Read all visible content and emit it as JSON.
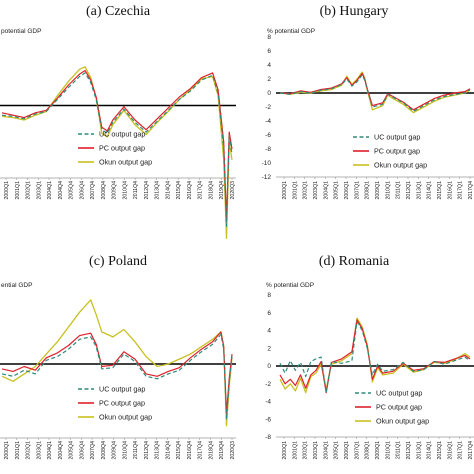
{
  "colors": {
    "uc": "#2e8b7a",
    "pc": "#e0202a",
    "okun": "#c8c020",
    "zero": "#000000",
    "axis": "#9a9a9a"
  },
  "legend_labels": [
    "UC output gap",
    "PC output gap",
    "Okun output gap"
  ],
  "chart_data": [
    {
      "type": "line",
      "title": "(a) Czechia",
      "ylabel": "potential GDP",
      "ylim": [
        -6,
        6
      ],
      "yticks": [],
      "xticks": [
        "2000Q1",
        "2001Q1",
        "2002Q1",
        "2003Q1",
        "2004Q1",
        "2004Q4",
        "2005Q4",
        "2006Q4",
        "2007Q4",
        "2008Q4",
        "2009Q4",
        "2010Q4",
        "2011Q4",
        "2012Q4",
        "2013Q4",
        "2014Q4",
        "2015Q4",
        "2016Q4",
        "2017Q4",
        "2018Q4",
        "2019Q4",
        "2020Q3"
      ],
      "show_legend": true,
      "series": [
        {
          "name": "UC output gap",
          "x": [
            2000,
            2001,
            2002,
            2003,
            2004,
            2005,
            2006,
            2007,
            2007.5,
            2008,
            2008.5,
            2009,
            2009.5,
            2010,
            2011,
            2012,
            2013,
            2014,
            2015,
            2016,
            2017,
            2018,
            2019,
            2019.5,
            2020,
            2020.25,
            2020.5,
            2020.75
          ],
          "y": [
            -0.8,
            -0.9,
            -1.1,
            -0.7,
            -0.5,
            0.5,
            1.5,
            2.4,
            2.7,
            1.9,
            0.5,
            -2.0,
            -2.3,
            -1.4,
            -0.3,
            -1.4,
            -2.2,
            -1.3,
            -0.4,
            0.5,
            1.2,
            2.1,
            2.5,
            1.0,
            -3.5,
            -10.0,
            -2.5,
            -4.0
          ]
        },
        {
          "name": "PC output gap",
          "x": [
            2000,
            2001,
            2002,
            2003,
            2004,
            2005,
            2006,
            2007,
            2007.5,
            2008,
            2008.5,
            2009,
            2009.5,
            2010,
            2011,
            2012,
            2013,
            2014,
            2015,
            2016,
            2017,
            2018,
            2019,
            2019.5,
            2020,
            2020.25,
            2020.5,
            2020.75
          ],
          "y": [
            -0.6,
            -0.8,
            -1.0,
            -0.6,
            -0.4,
            0.6,
            1.7,
            2.6,
            2.9,
            2.1,
            0.7,
            -1.8,
            -2.1,
            -1.2,
            -0.1,
            -1.2,
            -2.0,
            -1.1,
            -0.2,
            0.7,
            1.4,
            2.3,
            2.7,
            1.3,
            -3.0,
            -9.5,
            -2.2,
            -3.6
          ]
        },
        {
          "name": "Okun output gap",
          "x": [
            2000,
            2001,
            2002,
            2003,
            2004,
            2005,
            2006,
            2007,
            2007.5,
            2008,
            2008.5,
            2009,
            2009.5,
            2010,
            2011,
            2012,
            2013,
            2014,
            2015,
            2016,
            2017,
            2018,
            2019,
            2019.5,
            2020,
            2020.25,
            2020.5,
            2020.75
          ],
          "y": [
            -0.9,
            -1.0,
            -1.2,
            -0.8,
            -0.5,
            0.8,
            2.0,
            3.0,
            3.2,
            2.3,
            0.6,
            -2.3,
            -2.6,
            -1.6,
            -0.4,
            -1.6,
            -2.4,
            -1.4,
            -0.5,
            0.5,
            1.3,
            2.2,
            2.4,
            0.8,
            -4.5,
            -11.0,
            -3.0,
            -4.5
          ]
        }
      ]
    },
    {
      "type": "line",
      "title": "(b) Hungary",
      "ylabel": "% potential GDP",
      "ylim": [
        -12,
        8
      ],
      "yticks": [
        8,
        6,
        4,
        2,
        0,
        -2,
        -4,
        -6,
        -8,
        -10,
        -12
      ],
      "xticks": [
        "2000Q1",
        "2001Q1",
        "2002Q1",
        "2003Q1",
        "2004Q1",
        "2005Q1",
        "2006Q1",
        "2007Q1",
        "2008Q1",
        "2009Q1",
        "2010Q1",
        "2011Q1",
        "2012Q1",
        "2013Q1",
        "2014Q1",
        "2015Q1",
        "2016Q1",
        "2017Q1",
        "2017Q4"
      ],
      "show_legend": true,
      "series": [
        {
          "name": "UC output gap",
          "x": [
            2000,
            2001,
            2002,
            2003,
            2004,
            2005,
            2006,
            2006.5,
            2007,
            2007.5,
            2008,
            2008.25,
            2008.5,
            2009,
            2010,
            2010.5,
            2011,
            2012,
            2013,
            2014,
            2015,
            2016,
            2017,
            2018,
            2018.5
          ],
          "y": [
            0,
            -0.2,
            0.2,
            0,
            0.4,
            0.6,
            1.2,
            2.0,
            1.0,
            1.6,
            2.6,
            1.8,
            0.5,
            -2.0,
            -1.6,
            -0.2,
            -0.6,
            -1.4,
            -2.6,
            -1.8,
            -1.0,
            -0.5,
            -0.2,
            0,
            0.5
          ]
        },
        {
          "name": "PC output gap",
          "x": [
            2000,
            2001,
            2002,
            2003,
            2004,
            2005,
            2006,
            2006.5,
            2007,
            2007.5,
            2008,
            2008.25,
            2008.5,
            2009,
            2010,
            2010.5,
            2011,
            2012,
            2013,
            2014,
            2015,
            2016,
            2017,
            2018,
            2018.5
          ],
          "y": [
            0,
            -0.1,
            0.3,
            0.1,
            0.5,
            0.7,
            1.3,
            2.2,
            1.1,
            1.8,
            2.8,
            2.0,
            0.6,
            -1.8,
            -1.4,
            -0.1,
            -0.5,
            -1.3,
            -2.4,
            -1.6,
            -0.8,
            -0.3,
            0,
            0.2,
            0.6
          ]
        },
        {
          "name": "Okun output gap",
          "x": [
            2000,
            2001,
            2002,
            2003,
            2004,
            2005,
            2006,
            2006.5,
            2007,
            2007.5,
            2008,
            2008.25,
            2008.5,
            2009,
            2010,
            2010.5,
            2011,
            2012,
            2013,
            2014,
            2015,
            2016,
            2017,
            2018,
            2018.5
          ],
          "y": [
            0,
            -0.2,
            0.1,
            0,
            0.3,
            0.5,
            1.1,
            2.4,
            1.2,
            2.0,
            3.0,
            2.1,
            0.4,
            -2.4,
            -1.8,
            -0.3,
            -0.8,
            -1.6,
            -2.8,
            -2.0,
            -1.2,
            -0.6,
            -0.3,
            0,
            0.4
          ]
        }
      ]
    },
    {
      "type": "line",
      "title": "(c) Poland",
      "ylabel": "ential GDP",
      "ylim": [
        -6,
        6
      ],
      "yticks": [],
      "xticks": [
        "2000Q1",
        "2001Q1",
        "2002Q1",
        "2003Q1",
        "2004Q1",
        "2004Q4",
        "2005Q4",
        "2006Q4",
        "2007Q4",
        "2008Q4",
        "2009Q4",
        "2010Q4",
        "2011Q4",
        "2012Q4",
        "2013Q4",
        "2014Q4",
        "2015Q4",
        "2016Q4",
        "2017Q4",
        "2018Q4",
        "2019Q4",
        "2020Q3"
      ],
      "show_legend": true,
      "series": [
        {
          "name": "UC output gap",
          "x": [
            2000,
            2001,
            2002,
            2003,
            2004,
            2005,
            2006,
            2007,
            2008,
            2008.5,
            2009,
            2010,
            2011,
            2012,
            2013,
            2014,
            2015,
            2016,
            2017,
            2018,
            2019,
            2019.75,
            2020,
            2020.25,
            2020.5,
            2020.75
          ],
          "y": [
            -0.8,
            -1.0,
            -0.5,
            -0.8,
            0.3,
            0.6,
            1.2,
            2.0,
            2.2,
            1.4,
            -0.4,
            -0.3,
            0.8,
            0.2,
            -1.0,
            -1.2,
            -0.8,
            -0.5,
            0.3,
            1.0,
            1.6,
            2.4,
            1.2,
            -4.5,
            -1.5,
            0.6
          ]
        },
        {
          "name": "PC output gap",
          "x": [
            2000,
            2001,
            2002,
            2003,
            2004,
            2005,
            2006,
            2007,
            2008,
            2008.5,
            2009,
            2010,
            2011,
            2012,
            2013,
            2014,
            2015,
            2016,
            2017,
            2018,
            2019,
            2019.75,
            2020,
            2020.25,
            2020.5,
            2020.75
          ],
          "y": [
            -0.4,
            -0.6,
            -0.2,
            -0.5,
            0.5,
            0.9,
            1.5,
            2.3,
            2.5,
            1.6,
            -0.2,
            -0.1,
            1.0,
            0.4,
            -0.8,
            -1.0,
            -0.6,
            -0.3,
            0.5,
            1.2,
            1.8,
            2.6,
            1.4,
            -4.0,
            -1.2,
            0.8
          ]
        },
        {
          "name": "Okun output gap",
          "x": [
            2000,
            2001,
            2002,
            2003,
            2004,
            2005,
            2006,
            2007,
            2008,
            2008.5,
            2009,
            2010,
            2011,
            2012,
            2013,
            2014,
            2015,
            2016,
            2017,
            2018,
            2019,
            2019.75,
            2020,
            2020.25,
            2020.5,
            2020.75
          ],
          "y": [
            -1.0,
            -1.4,
            -0.8,
            -0.2,
            0.8,
            1.8,
            3.0,
            4.2,
            5.2,
            4.0,
            2.6,
            2.2,
            2.8,
            1.8,
            0.6,
            -0.2,
            0,
            0.4,
            0.8,
            1.4,
            2.0,
            2.6,
            1.5,
            -5.0,
            -1.8,
            0.5
          ]
        }
      ]
    },
    {
      "type": "line",
      "title": "(d) Romania",
      "ylabel": "% potential GDP",
      "ylim": [
        -8,
        8
      ],
      "yticks": [
        8,
        6,
        4,
        2,
        0,
        -2,
        -4,
        -6,
        -8
      ],
      "xticks": [
        "2000Q1",
        "2001Q1",
        "2002Q1",
        "2003Q1",
        "2004Q1",
        "2005Q1",
        "2006Q1",
        "2007Q1",
        "2008Q1",
        "2009Q1",
        "2010Q1",
        "2011Q1",
        "2012Q1",
        "2013Q1",
        "2014Q1",
        "2015Q1",
        "2016Q1",
        "2017Q1",
        "2017Q4"
      ],
      "show_legend": true,
      "series": [
        {
          "name": "UC output gap",
          "x": [
            2000,
            2000.5,
            2001,
            2001.5,
            2002,
            2002.5,
            2003,
            2003.5,
            2004,
            2004.5,
            2005,
            2006,
            2007,
            2007.5,
            2008,
            2008.5,
            2009,
            2009.5,
            2010,
            2011,
            2012,
            2013,
            2014,
            2015,
            2016,
            2017,
            2018,
            2018.5
          ],
          "y": [
            0.3,
            -0.8,
            0.6,
            -0.5,
            0.4,
            -1.2,
            0.5,
            0.8,
            1.0,
            -3.0,
            0.5,
            0.3,
            0.6,
            5.0,
            4.0,
            2.0,
            -1.0,
            0.2,
            -0.6,
            -0.4,
            0.4,
            -0.6,
            -0.4,
            0.5,
            0.2,
            0.6,
            1.0,
            0.6
          ]
        },
        {
          "name": "PC output gap",
          "x": [
            2000,
            2000.5,
            2001,
            2001.5,
            2002,
            2002.5,
            2003,
            2003.5,
            2004,
            2004.5,
            2005,
            2006,
            2007,
            2007.5,
            2008,
            2008.5,
            2009,
            2009.5,
            2010,
            2011,
            2012,
            2013,
            2014,
            2015,
            2016,
            2017,
            2018,
            2018.5
          ],
          "y": [
            -1.0,
            -2.0,
            -1.5,
            -2.2,
            -1.0,
            -2.5,
            -1.0,
            -0.5,
            0.5,
            -3.0,
            0.4,
            0.8,
            1.6,
            5.2,
            4.2,
            2.2,
            -1.5,
            0,
            -0.8,
            -0.6,
            0.3,
            -0.5,
            -0.3,
            0.5,
            0.4,
            0.8,
            1.2,
            0.8
          ]
        },
        {
          "name": "Okun output gap",
          "x": [
            2000,
            2000.5,
            2001,
            2001.5,
            2002,
            2002.5,
            2003,
            2003.5,
            2004,
            2004.5,
            2005,
            2006,
            2007,
            2007.5,
            2008,
            2008.5,
            2009,
            2009.5,
            2010,
            2011,
            2012,
            2013,
            2014,
            2015,
            2016,
            2017,
            2018,
            2018.5
          ],
          "y": [
            -1.5,
            -2.6,
            -2.0,
            -2.8,
            -1.4,
            -3.0,
            -1.2,
            -0.8,
            0.2,
            -2.6,
            0.2,
            0.6,
            1.4,
            5.4,
            4.4,
            2.4,
            -1.8,
            -0.2,
            -1.0,
            -0.8,
            0.2,
            -0.7,
            -0.4,
            0.4,
            0.3,
            0.7,
            1.4,
            1.0
          ]
        }
      ]
    }
  ]
}
